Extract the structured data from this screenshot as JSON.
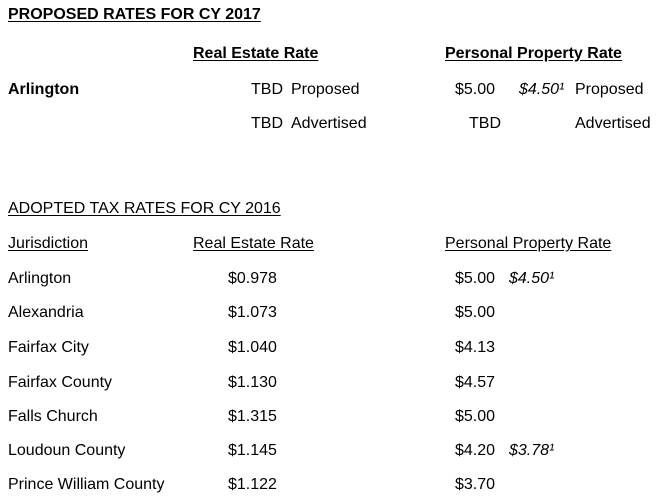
{
  "proposed": {
    "heading": "PROPOSED RATES FOR CY 2017",
    "col_real_estate": "Real Estate Rate",
    "col_personal_property": "Personal Property Rate",
    "jurisdiction": "Arlington",
    "row1": {
      "re_value": "TBD",
      "re_status": "Proposed",
      "pp_value": "$5.00",
      "pp_alt": "$4.50¹",
      "pp_status": "Proposed"
    },
    "row2": {
      "re_value": "TBD",
      "re_status": "Advertised",
      "pp_value": "TBD",
      "pp_status": "Advertised"
    }
  },
  "adopted": {
    "heading": "ADOPTED TAX RATES FOR CY 2016",
    "col_jurisdiction": "Jurisdiction",
    "col_real_estate": "Real Estate Rate",
    "col_personal_property": "Personal Property Rate",
    "rows": [
      {
        "jurisdiction": "Arlington",
        "re": "$0.978",
        "pp": "$5.00",
        "pp_alt": "$4.50¹"
      },
      {
        "jurisdiction": "Alexandria",
        "re": "$1.073",
        "pp": "$5.00"
      },
      {
        "jurisdiction": "Fairfax City",
        "re": "$1.040",
        "pp": "$4.13"
      },
      {
        "jurisdiction": "Fairfax County",
        "re": "$1.130",
        "pp": "$4.57"
      },
      {
        "jurisdiction": "Falls Church",
        "re": "$1.315",
        "pp": "$5.00"
      },
      {
        "jurisdiction": "Loudoun County",
        "re": "$1.145",
        "pp": "$4.20",
        "pp_alt": "$3.78¹"
      },
      {
        "jurisdiction": "Prince William County",
        "re": "$1.122",
        "pp": "$3.70"
      }
    ]
  }
}
